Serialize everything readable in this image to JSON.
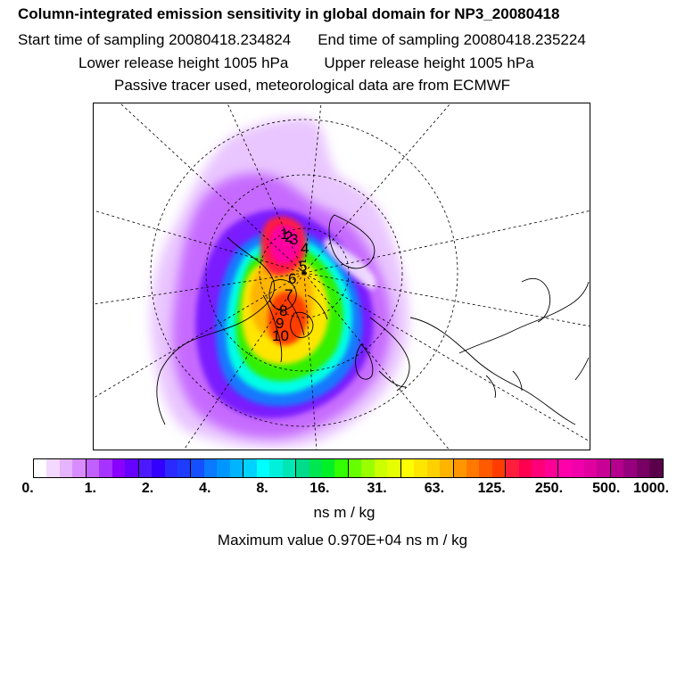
{
  "title": {
    "line1": "Column-integrated emission sensitivity in global domain for NP3_20080418",
    "start_time": "Start time of sampling 20080418.234824",
    "end_time": "End time of sampling 20080418.235224",
    "lower_release": "Lower release height 1005 hPa",
    "upper_release": "Upper release height 1005 hPa",
    "line4": "Passive tracer used, meteorological data are from ECMWF"
  },
  "map": {
    "projection": "polar-stereographic-north",
    "point_labels": [
      "1",
      "2",
      "3",
      "4",
      "5",
      "6",
      "7",
      "8",
      "9",
      "10"
    ]
  },
  "legend": {
    "colors": [
      "#ffffff",
      "#f3d9ff",
      "#e6b3ff",
      "#d98cff",
      "#c060ff",
      "#a633ff",
      "#8a00ff",
      "#6600ff",
      "#4d1aff",
      "#3300ff",
      "#2a2aff",
      "#1e3cff",
      "#1450ff",
      "#0a78ff",
      "#0096ff",
      "#00b4ff",
      "#00d2ff",
      "#00ffff",
      "#00f0dc",
      "#00e6b4",
      "#00dc8c",
      "#00e650",
      "#00f028",
      "#33ff00",
      "#66ff00",
      "#99ff00",
      "#ccff00",
      "#e6ff00",
      "#ffff00",
      "#ffe600",
      "#ffd000",
      "#ffb400",
      "#ff9600",
      "#ff7800",
      "#ff5a00",
      "#ff3c00",
      "#ff1e3c",
      "#ff0050",
      "#ff0078",
      "#ff0096",
      "#ff00aa",
      "#f000aa",
      "#e000a0",
      "#c80096",
      "#b4008c",
      "#96007d",
      "#780064",
      "#5a004b"
    ],
    "tick_labels": [
      "0.",
      "1.",
      "2.",
      "4.",
      "8.",
      "16.",
      "31.",
      "63.",
      "125.",
      "250.",
      "500.",
      "1000."
    ],
    "unit": "ns m / kg",
    "max_value_text": "Maximum value  0.970E+04 ns m / kg"
  }
}
